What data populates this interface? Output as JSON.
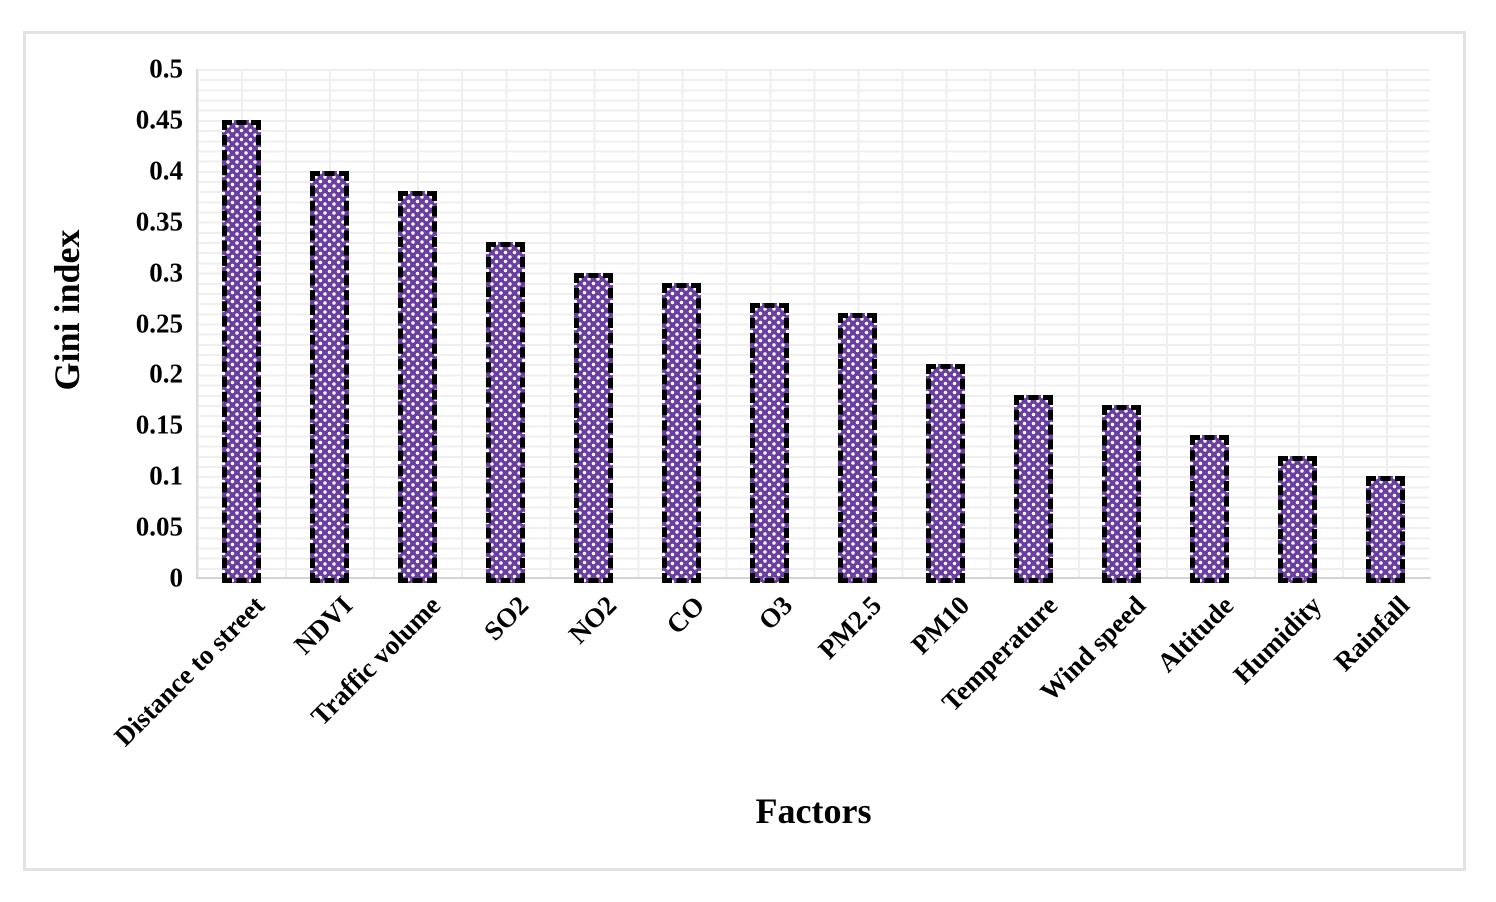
{
  "chart_data": {
    "type": "bar",
    "title": "",
    "xlabel": "Factors",
    "ylabel": "Gini index",
    "categories": [
      "Distance to street",
      "NDVI",
      "Traffic volume",
      "SO2",
      "NO2",
      "CO",
      "O3",
      "PM2.5",
      "PM10",
      "Temperature",
      "Wind speed",
      "Altitude",
      "Humidity",
      "Rainfall"
    ],
    "values": [
      0.45,
      0.4,
      0.38,
      0.33,
      0.3,
      0.29,
      0.27,
      0.26,
      0.21,
      0.18,
      0.17,
      0.14,
      0.12,
      0.1
    ],
    "ylim": [
      0,
      0.5
    ],
    "ytick_step": 0.05,
    "yticks": [
      "0",
      "0.05",
      "0.1",
      "0.15",
      "0.2",
      "0.25",
      "0.3",
      "0.35",
      "0.4",
      "0.45",
      "0.5"
    ],
    "grid": "light gray minor gridlines: horizontal every 0.01, vertical every half category",
    "legend": "none",
    "x_tick_rotation_deg": 45,
    "colors": {
      "bar_fill": "#6b3fa0",
      "bar_pattern_dots": "#ffffff",
      "bar_border": "#000000",
      "gridline": "#efefef",
      "axis_line": "#d4d4d4",
      "frame_border": "#e2e2e2",
      "text": "#000000"
    },
    "bar_style": "purple fill with white dot pattern, thick black dashed outline"
  }
}
